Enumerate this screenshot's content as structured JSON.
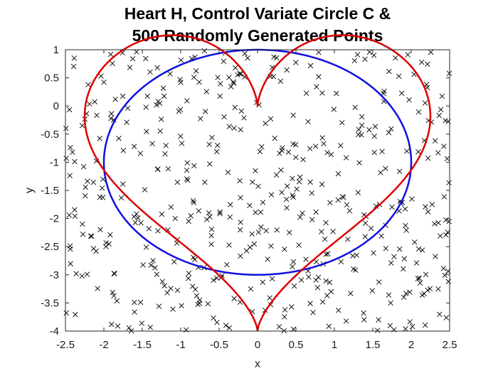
{
  "chart_data": {
    "type": "scatter",
    "title": [
      "Heart H, Control Variate Circle C &",
      "500 Randomly Generated Points"
    ],
    "xlabel": "x",
    "ylabel": "y",
    "xlim": [
      -2.5,
      2.5
    ],
    "ylim": [
      -4,
      1
    ],
    "xticks": [
      -2.5,
      -2,
      -1.5,
      -1,
      -0.5,
      0,
      0.5,
      1,
      1.5,
      2,
      2.5
    ],
    "xtick_labels": [
      "-2.5",
      "-2",
      "-1.5",
      "-1",
      "-0.5",
      "0",
      "0.5",
      "1",
      "1.5",
      "2",
      "2.5"
    ],
    "yticks": [
      1,
      0.5,
      0,
      -0.5,
      -1,
      -1.5,
      -2,
      -2.5,
      -3,
      -3.5,
      -4
    ],
    "ytick_labels": [
      "1",
      "0.5",
      "0",
      "-0.5",
      "-1",
      "-1.5",
      "-2",
      "-2.5",
      "-3",
      "-3.5",
      "-4"
    ],
    "grid": false,
    "legend": "none",
    "series": [
      {
        "kind": "curve",
        "color": "#dd0000",
        "description": "heart curve H: x = sin^3(t) * 2.25... cusp at (0,0) top, tip at (0,-4)",
        "cusp_top": [
          0,
          0
        ],
        "tip_bottom": [
          0,
          -4
        ],
        "lobe_top_y": 0.62,
        "max_x": 2.25
      },
      {
        "kind": "curve",
        "color": "#1010e0",
        "description": "control variate circle C",
        "center": [
          0,
          -1
        ],
        "radius": 2
      },
      {
        "kind": "points",
        "marker": "x",
        "color": "#000000",
        "count": 500,
        "x_range": [
          -2.5,
          2.5
        ],
        "y_range": [
          -4,
          1
        ]
      }
    ]
  }
}
